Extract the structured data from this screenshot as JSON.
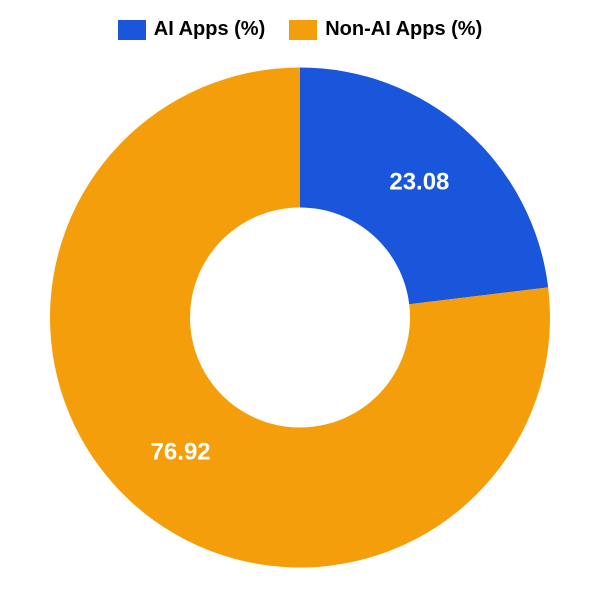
{
  "chart": {
    "type": "donut",
    "background_color": "#ffffff",
    "outer_radius": 250,
    "inner_radius": 110,
    "start_angle_deg": -90,
    "label_fontsize": 24,
    "label_color": "#ffffff",
    "legend_fontsize": 20,
    "legend_text_color": "#000000",
    "slices": [
      {
        "label": "AI Apps (%)",
        "value": 23.08,
        "color": "#1a56db",
        "display": "23.08"
      },
      {
        "label": "Non-AI Apps (%)",
        "value": 76.92,
        "color": "#f59e0b",
        "display": "76.92"
      }
    ]
  }
}
